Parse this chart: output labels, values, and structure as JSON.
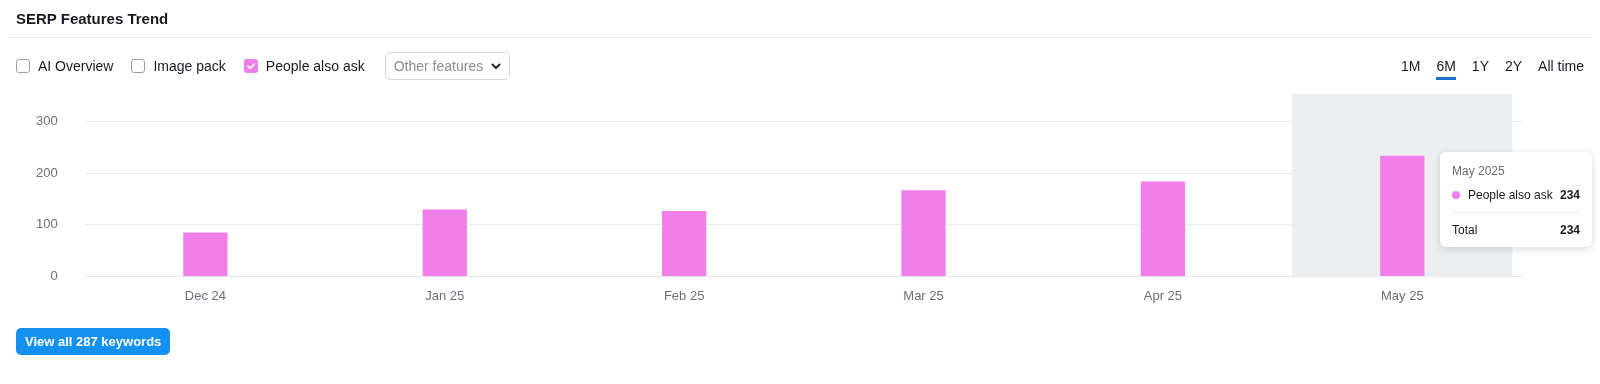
{
  "chart_data": {
    "type": "bar",
    "title": "SERP Features Trend",
    "categories": [
      "Dec 24",
      "Jan 25",
      "Feb 25",
      "Mar 25",
      "Apr 25",
      "May 25"
    ],
    "series": [
      {
        "name": "People also ask",
        "color": "#f17fea",
        "values": [
          85,
          130,
          127,
          167,
          184,
          234
        ]
      }
    ],
    "ylim": [
      0,
      300
    ],
    "yticks": [
      0,
      100,
      200,
      300
    ],
    "grid": "y",
    "legend": "top left",
    "bands": [
      {
        "axis": "x",
        "from": "May 25",
        "to": "May 25",
        "color": "#eceeef"
      }
    ],
    "annotations": [
      "AI Overview",
      "Image pack",
      "Other features",
      "1M",
      "6M",
      "1Y",
      "2Y",
      "All time",
      "May 2025",
      "People also ask",
      "234",
      "Total",
      "234",
      "View all 287 keywords"
    ]
  }
}
